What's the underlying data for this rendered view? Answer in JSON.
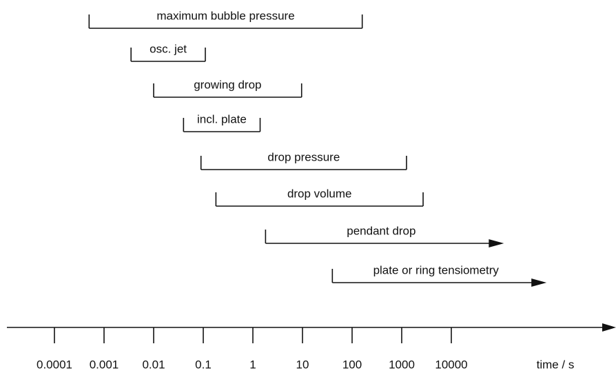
{
  "chart_data": {
    "type": "range",
    "xscale": "log",
    "xlabel": "time / s",
    "xlim": [
      1e-05,
      10000000
    ],
    "xticks": [
      0.0001,
      0.001,
      0.01,
      0.1,
      1,
      10,
      100,
      1000,
      10000
    ],
    "color": "#111111",
    "ranges": [
      {
        "name": "maximum bubble pressure",
        "start": 0.0005,
        "end": 160,
        "arrow": false
      },
      {
        "name": "osc. jet",
        "start": 0.0035,
        "end": 0.11,
        "arrow": false
      },
      {
        "name": "growing drop",
        "start": 0.01,
        "end": 9.6,
        "arrow": false
      },
      {
        "name": "incl. plate",
        "start": 0.04,
        "end": 1.4,
        "arrow": false
      },
      {
        "name": "drop pressure",
        "start": 0.09,
        "end": 1250,
        "arrow": false
      },
      {
        "name": "drop volume",
        "start": 0.18,
        "end": 2700,
        "arrow": false
      },
      {
        "name": "pendant drop",
        "start": 1.8,
        "end": 115000,
        "arrow": true
      },
      {
        "name": "plate or ring tensiometry",
        "start": 40,
        "end": 830000,
        "arrow": true
      }
    ]
  }
}
